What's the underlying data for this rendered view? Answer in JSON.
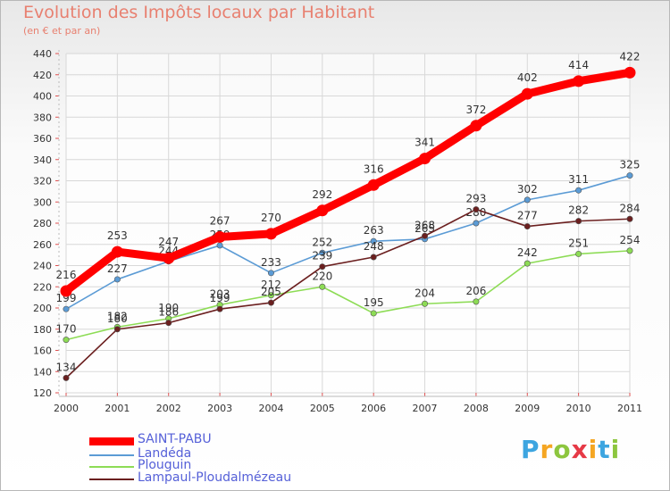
{
  "chart_data": {
    "type": "line",
    "title": "Evolution des Impôts locaux par Habitant",
    "subtitle": "(en € et par an)",
    "x": [
      2000,
      2001,
      2002,
      2003,
      2004,
      2005,
      2006,
      2007,
      2008,
      2009,
      2010,
      2011
    ],
    "x_tick_labels": [
      "2000",
      "2001",
      "2002",
      "2003",
      "2004",
      "2005",
      "2006",
      "2007",
      "2008",
      "2009",
      "2010",
      "2011"
    ],
    "ylim": [
      120,
      440
    ],
    "y_ticks": [
      120,
      140,
      160,
      180,
      200,
      220,
      240,
      260,
      280,
      300,
      320,
      340,
      360,
      380,
      400,
      420,
      440
    ],
    "y_tick_labels": [
      "120",
      "140",
      "160",
      "180",
      "200",
      "220",
      "240",
      "260",
      "280",
      "300",
      "320",
      "340",
      "360",
      "380",
      "400",
      "420",
      "440"
    ],
    "grid": true,
    "legend_position": "bottom-left",
    "series": [
      {
        "name": "SAINT-PABU",
        "color": "#ff0000",
        "emphasis": "thick",
        "values": [
          216,
          253,
          247,
          267,
          270,
          292,
          316,
          341,
          372,
          402,
          414,
          422
        ],
        "labels": [
          "216",
          "253",
          "247",
          "267",
          "270",
          "292",
          "316",
          "341",
          "372",
          "402",
          "414",
          "422"
        ]
      },
      {
        "name": "Landéda",
        "color": "#5b9bd5",
        "values": [
          199,
          227,
          244,
          259,
          233,
          252,
          263,
          265,
          280,
          302,
          311,
          325
        ],
        "labels": [
          "199",
          "227",
          "244",
          "259",
          "233",
          "252",
          "263",
          "265",
          "280",
          "302",
          "311",
          "325"
        ]
      },
      {
        "name": "Plouguin",
        "color": "#8ddc55",
        "values": [
          170,
          182,
          190,
          203,
          212,
          220,
          195,
          204,
          206,
          242,
          251,
          254
        ],
        "labels": [
          "170",
          "182",
          "190",
          "203",
          "212",
          "220",
          "195",
          "204",
          "206",
          "242",
          "251",
          "254"
        ]
      },
      {
        "name": "Lampaul-Ploudalmézeau",
        "color": "#6b1f1f",
        "values": [
          134,
          180,
          186,
          199,
          205,
          239,
          248,
          268,
          293,
          277,
          282,
          284
        ],
        "labels": [
          "134",
          "180",
          "186",
          "199",
          "205",
          "239",
          "248",
          "268",
          "293",
          "277",
          "282",
          "284"
        ]
      }
    ]
  },
  "logo": {
    "letters": [
      "P",
      "r",
      "o",
      "x",
      "i",
      "t",
      "i"
    ],
    "colors": [
      "#3da5e0",
      "#f5a623",
      "#8dc63f",
      "#e63946",
      "#f5a623",
      "#3da5e0",
      "#8dc63f"
    ]
  }
}
